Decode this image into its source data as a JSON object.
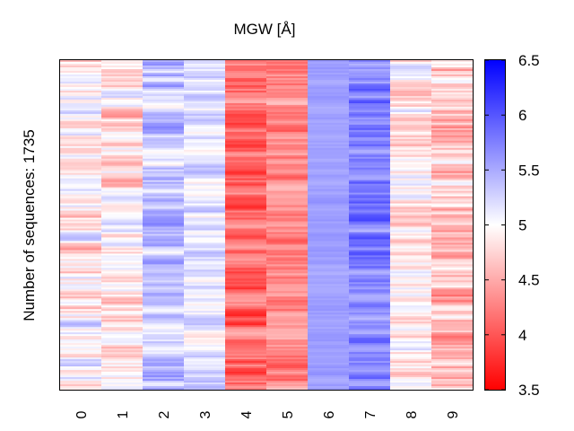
{
  "chart_data": {
    "type": "heatmap",
    "title": "MGW [Å]",
    "ylabel": "Number of sequences: 1735",
    "xlabel": "",
    "x_ticks": [
      "0",
      "1",
      "2",
      "3",
      "4",
      "5",
      "6",
      "7",
      "8",
      "9"
    ],
    "num_sequences": 1735,
    "colorbar": {
      "min": 3.5,
      "max": 6.5,
      "ticks": [
        "3.5",
        "4",
        "4.5",
        "5",
        "5.5",
        "6",
        "6.5"
      ],
      "colors": {
        "low": "#ff0000",
        "mid": "#ffffff",
        "high": "#0000ff"
      }
    },
    "column_profiles": [
      {
        "position": "0",
        "mean": 4.9,
        "spread": 0.45
      },
      {
        "position": "1",
        "mean": 4.85,
        "spread": 0.4
      },
      {
        "position": "2",
        "mean": 5.35,
        "spread": 0.35
      },
      {
        "position": "3",
        "mean": 5.15,
        "spread": 0.3
      },
      {
        "position": "4",
        "mean": 4.15,
        "spread": 0.35
      },
      {
        "position": "5",
        "mean": 4.3,
        "spread": 0.3
      },
      {
        "position": "6",
        "mean": 5.55,
        "spread": 0.1
      },
      {
        "position": "7",
        "mean": 5.75,
        "spread": 0.3
      },
      {
        "position": "8",
        "mean": 4.85,
        "spread": 0.4
      },
      {
        "position": "9",
        "mean": 4.6,
        "spread": 0.45
      }
    ]
  }
}
